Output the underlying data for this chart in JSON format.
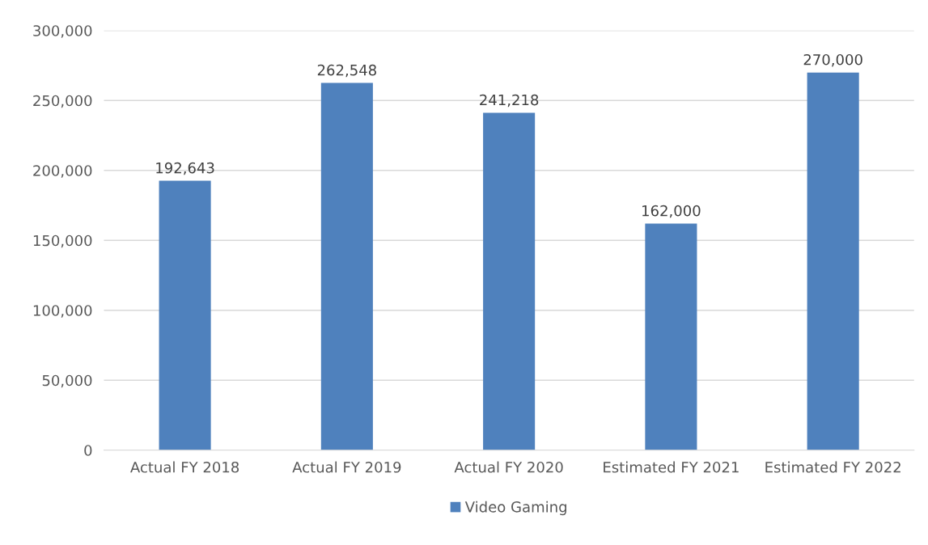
{
  "chart_data": {
    "type": "bar",
    "categories": [
      "Actual FY 2018",
      "Actual FY 2019",
      "Actual FY 2020",
      "Estimated FY 2021",
      "Estimated FY 2022"
    ],
    "series": [
      {
        "name": "Video Gaming",
        "color": "#4f81bd",
        "values": [
          192643,
          262548,
          241218,
          162000,
          270000
        ]
      }
    ],
    "ylim": [
      0,
      300000
    ],
    "yticks": [
      0,
      {
        "value": 50000,
        "label": "50,000"
      },
      {
        "value": 100000,
        "label": "100,000"
      },
      {
        "value": 150000,
        "label": "150,000"
      },
      {
        "value": 200000,
        "label": "200,000"
      },
      {
        "value": 250000,
        "label": "250,000"
      },
      {
        "value": 300000,
        "label": "300,000"
      }
    ],
    "value_labels": [
      "192,643",
      "262,548",
      "241,218",
      "162,000",
      "270,000"
    ],
    "grid": "y",
    "legend": "bottom"
  }
}
